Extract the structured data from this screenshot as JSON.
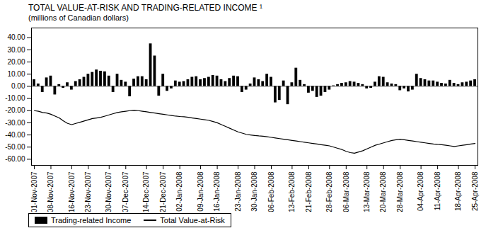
{
  "chart_data": {
    "type": "bar",
    "title": "TOTAL VALUE-AT-RISK AND TRADING-RELATED INCOME ¹",
    "subtitle": "(millions of Canadian dollars)",
    "categories": [
      "01-Nov-2007",
      null,
      null,
      null,
      "08-Nov-2007",
      null,
      null,
      null,
      null,
      "16-Nov-2007",
      null,
      null,
      null,
      "23-Nov-2007",
      null,
      null,
      null,
      null,
      "30-Nov-2007",
      null,
      null,
      null,
      "07-Dec-2007",
      null,
      null,
      null,
      null,
      "14-Dec-2007",
      null,
      null,
      null,
      "21-Dec-2007",
      null,
      null,
      null,
      "02-Jan-2008",
      null,
      null,
      null,
      null,
      "09-Jan-2008",
      null,
      null,
      null,
      "16-Jan-2008",
      null,
      null,
      null,
      null,
      "23-Jan-2008",
      null,
      null,
      null,
      "30-Jan-2008",
      null,
      null,
      null,
      "06-Feb-2008",
      null,
      null,
      null,
      null,
      "13-Feb-2008",
      null,
      null,
      null,
      "21-Feb-2008",
      null,
      null,
      null,
      null,
      "28-Feb-2008",
      null,
      null,
      null,
      "06-Mar-2008",
      null,
      null,
      null,
      null,
      "13-Mar-2008",
      null,
      null,
      null,
      "20-Mar-2008",
      null,
      null,
      null,
      "28-Mar-2008",
      null,
      null,
      null,
      null,
      "04-Apr-2008",
      null,
      null,
      null,
      "11-Apr-2008",
      null,
      null,
      null,
      null,
      "18-Apr-2008",
      null,
      null,
      null,
      "25-Apr-2008"
    ],
    "series": [
      {
        "name": "Trading-related Income",
        "type": "bar",
        "color": "#000000",
        "values": [
          5.5,
          2.0,
          -5.0,
          7.0,
          8.5,
          -7.0,
          1.5,
          -1.5,
          3.0,
          -3.0,
          4.0,
          5.5,
          7.5,
          10.0,
          11.5,
          13.5,
          12.5,
          12.0,
          8.5,
          -5.0,
          10.0,
          5.0,
          3.5,
          -8.5,
          6.0,
          8.0,
          8.0,
          5.5,
          35.0,
          25.0,
          -8.0,
          10.0,
          -4.0,
          -2.0,
          4.5,
          3.5,
          4.0,
          5.5,
          7.5,
          8.0,
          5.5,
          6.5,
          7.5,
          9.0,
          8.5,
          5.5,
          4.0,
          6.5,
          8.5,
          8.0,
          -5.0,
          -3.0,
          2.0,
          7.0,
          5.5,
          4.0,
          10.0,
          7.5,
          -13.5,
          -11.5,
          4.5,
          -15.0,
          3.0,
          15.0,
          5.0,
          1.5,
          -5.5,
          -4.0,
          -9.0,
          -8.0,
          -5.0,
          -3.0,
          0.5,
          1.5,
          2.5,
          3.0,
          4.0,
          3.5,
          2.5,
          1.5,
          -2.0,
          -1.5,
          3.5,
          8.0,
          7.5,
          3.0,
          2.0,
          1.5,
          -3.5,
          -2.0,
          -4.5,
          -3.0,
          10.0,
          6.5,
          5.5,
          4.5,
          4.5,
          3.5,
          2.5,
          2.0,
          5.0,
          2.5,
          1.5,
          3.0,
          3.5,
          4.5,
          5.5
        ]
      },
      {
        "name": "Total Value-at-Risk",
        "type": "line",
        "color": "#000000",
        "values": [
          -20.0,
          -20.5,
          -21.5,
          -22.0,
          -23.0,
          -24.5,
          -26.0,
          -28.5,
          -30.5,
          -31.5,
          -30.5,
          -29.5,
          -28.5,
          -27.5,
          -26.5,
          -26.0,
          -25.5,
          -24.5,
          -23.5,
          -22.5,
          -21.5,
          -21.0,
          -20.5,
          -20.0,
          -19.8,
          -20.0,
          -20.5,
          -21.0,
          -21.5,
          -22.0,
          -22.5,
          -23.0,
          -23.5,
          -24.0,
          -24.5,
          -24.8,
          -25.0,
          -25.5,
          -26.0,
          -26.5,
          -27.0,
          -27.5,
          -28.0,
          -29.0,
          -30.0,
          -31.5,
          -33.0,
          -34.5,
          -36.0,
          -37.5,
          -38.5,
          -39.5,
          -40.0,
          -40.5,
          -40.8,
          -41.0,
          -41.5,
          -42.0,
          -42.5,
          -43.0,
          -43.5,
          -44.0,
          -44.5,
          -45.0,
          -45.5,
          -46.0,
          -46.5,
          -47.0,
          -47.5,
          -48.0,
          -48.5,
          -49.0,
          -50.0,
          -51.0,
          -52.0,
          -53.5,
          -54.5,
          -55.0,
          -54.0,
          -53.0,
          -51.5,
          -50.0,
          -48.5,
          -47.5,
          -46.5,
          -45.5,
          -44.5,
          -44.0,
          -43.5,
          -44.0,
          -44.5,
          -45.0,
          -45.5,
          -46.0,
          -46.5,
          -47.0,
          -47.5,
          -47.8,
          -48.0,
          -48.5,
          -49.0,
          -49.5,
          -49.0,
          -48.5,
          -48.0,
          -47.5,
          -47.0
        ]
      }
    ],
    "ylim": [
      -65,
      48
    ],
    "yticks": [
      {
        "value": 40,
        "label": "40.00"
      },
      {
        "value": 30,
        "label": "30.00"
      },
      {
        "value": 20,
        "label": "20.00"
      },
      {
        "value": 10,
        "label": "10.00"
      },
      {
        "value": 0,
        "label": "0.00"
      },
      {
        "value": -10,
        "label": "-10.00"
      },
      {
        "value": -20,
        "label": "-20.00"
      },
      {
        "value": -30,
        "label": "-30.00"
      },
      {
        "value": -40,
        "label": "-40.00"
      },
      {
        "value": -50,
        "label": "-50.00"
      },
      {
        "value": -60,
        "label": "-60.00"
      }
    ],
    "grid": false,
    "legend": "bottom"
  }
}
